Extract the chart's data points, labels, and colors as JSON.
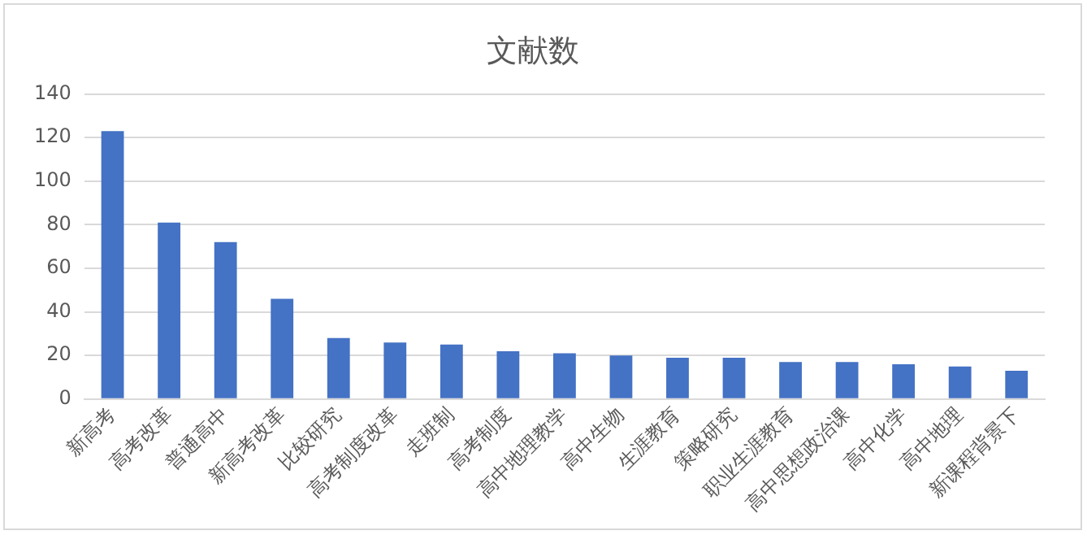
{
  "chart_data": {
    "type": "bar",
    "title": "文献数",
    "categories": [
      "新高考",
      "高考改革",
      "普通高中",
      "新高考改革",
      "比较研究",
      "高考制度改革",
      "走班制",
      "高考制度",
      "高中地理教学",
      "高中生物",
      "生涯教育",
      "策略研究",
      "职业生涯教育",
      "高中思想政治课",
      "高中化学",
      "高中地理",
      "新课程背景下"
    ],
    "values": [
      123,
      81,
      72,
      46,
      28,
      26,
      25,
      22,
      21,
      20,
      19,
      19,
      17,
      17,
      16,
      15,
      13
    ],
    "color": "#4472c4",
    "ylim": [
      0,
      140
    ],
    "yticks": [
      0,
      20,
      40,
      60,
      80,
      100,
      120,
      140
    ],
    "grid": "y",
    "legend": false
  }
}
